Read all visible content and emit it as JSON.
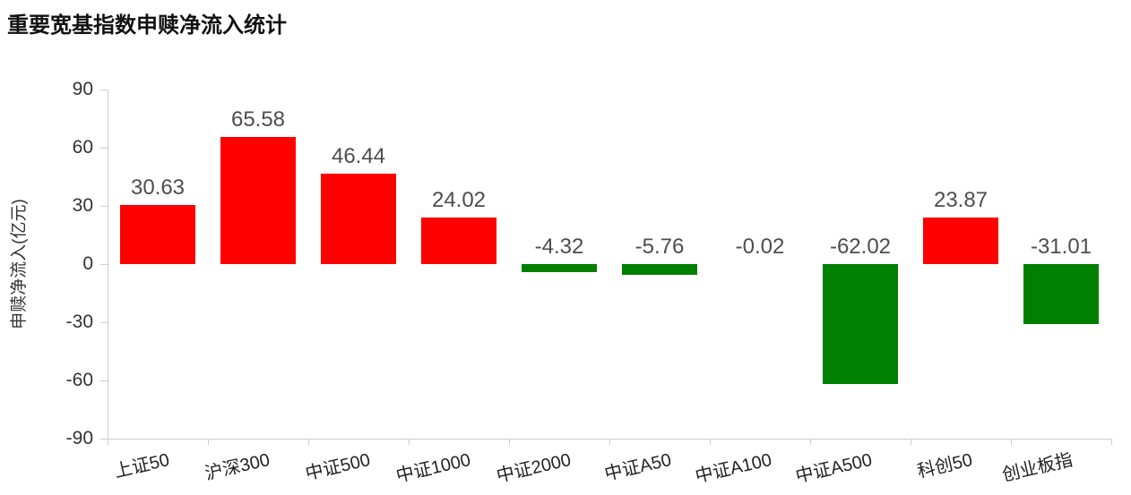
{
  "title": "重要宽基指数申赎净流入统计",
  "chart_data": {
    "type": "bar",
    "title": "重要宽基指数申赎净流入统计",
    "ylabel": "申赎净流入(亿元)",
    "xlabel": "",
    "categories": [
      "上证50",
      "沪深300",
      "中证500",
      "中证1000",
      "中证2000",
      "中证A50",
      "中证A100",
      "中证A500",
      "科创50",
      "创业板指"
    ],
    "values": [
      30.63,
      65.58,
      46.44,
      24.02,
      -4.32,
      -5.76,
      -0.02,
      -62.02,
      23.87,
      -31.01
    ],
    "ylim": [
      -90,
      90
    ],
    "yticks": [
      90,
      60,
      30,
      0,
      -30,
      -60,
      -90
    ],
    "positive_color": "#fe0000",
    "negative_color": "#008000",
    "grid": false,
    "legend_position": "none",
    "label_position": "above-bar-or-zero-line"
  }
}
